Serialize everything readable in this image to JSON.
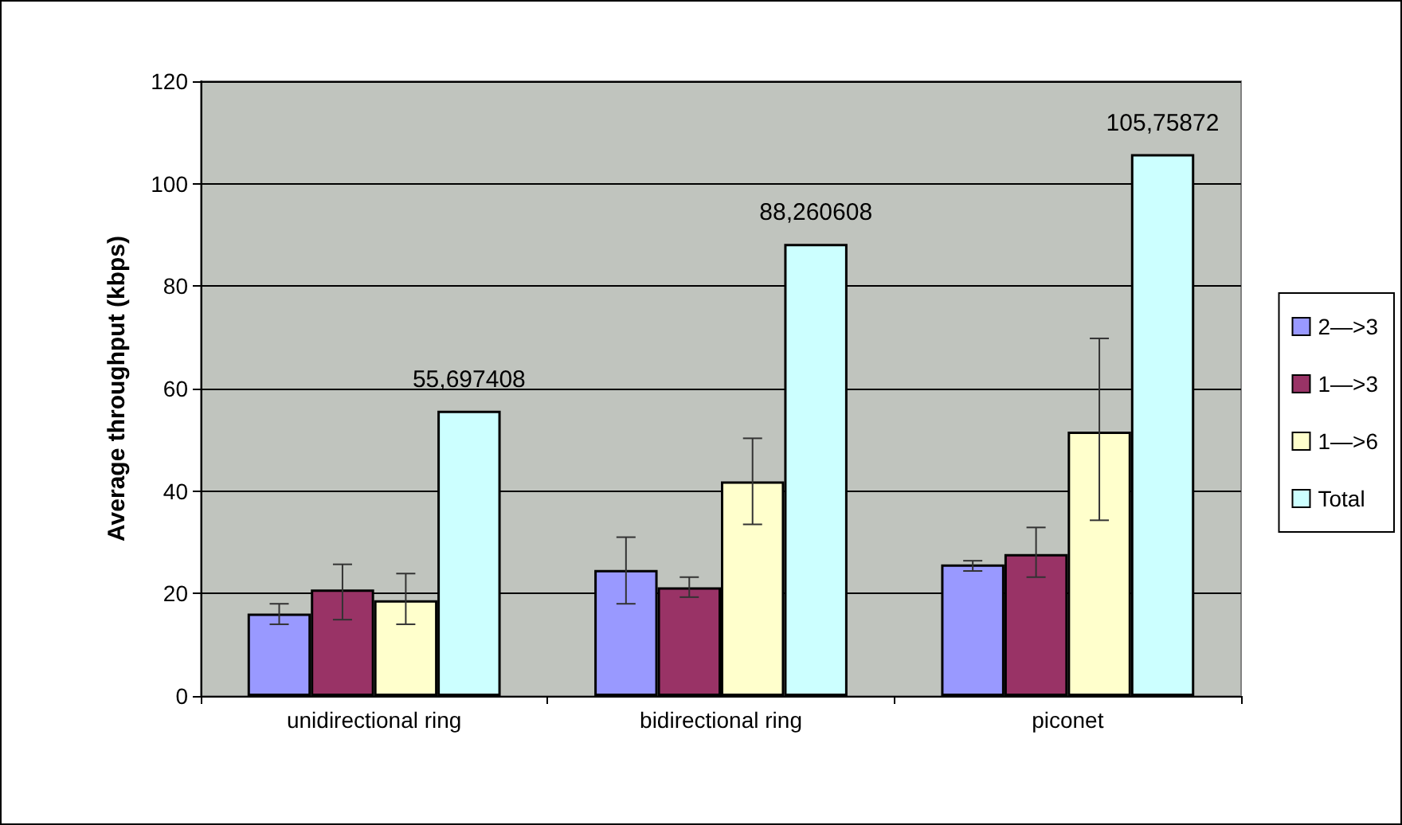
{
  "chart_data": {
    "type": "bar",
    "ylabel": "Average throughput (kbps)",
    "categories": [
      "unidirectional ring",
      "bidirectional ring",
      "piconet"
    ],
    "series": [
      {
        "name": "2—>3",
        "color": "#9999ff",
        "values": [
          16.1,
          24.6,
          25.7
        ],
        "errors": [
          [
            14.0,
            18.0
          ],
          [
            18.0,
            31.0
          ],
          [
            24.4,
            26.4
          ]
        ]
      },
      {
        "name": "1—>3",
        "color": "#993366",
        "values": [
          20.8,
          21.2,
          27.7
        ],
        "errors": [
          [
            14.9,
            25.7
          ],
          [
            19.3,
            23.2
          ],
          [
            23.2,
            32.9
          ]
        ]
      },
      {
        "name": "1—>6",
        "color": "#ffffcc",
        "values": [
          18.7,
          41.9,
          51.6
        ],
        "errors": [
          [
            14.0,
            23.9
          ],
          [
            33.5,
            50.3
          ],
          [
            34.3,
            69.8
          ]
        ]
      },
      {
        "name": "Total",
        "color": "#ccffff",
        "values": [
          55.697408,
          88.260608,
          105.75872
        ],
        "value_labels": [
          "55,697408",
          "88,260608",
          "105,75872"
        ]
      }
    ],
    "ylim": [
      0,
      120
    ],
    "yticks": [
      0,
      20,
      40,
      60,
      80,
      100,
      120
    ],
    "grid": "y",
    "legend": "right"
  }
}
